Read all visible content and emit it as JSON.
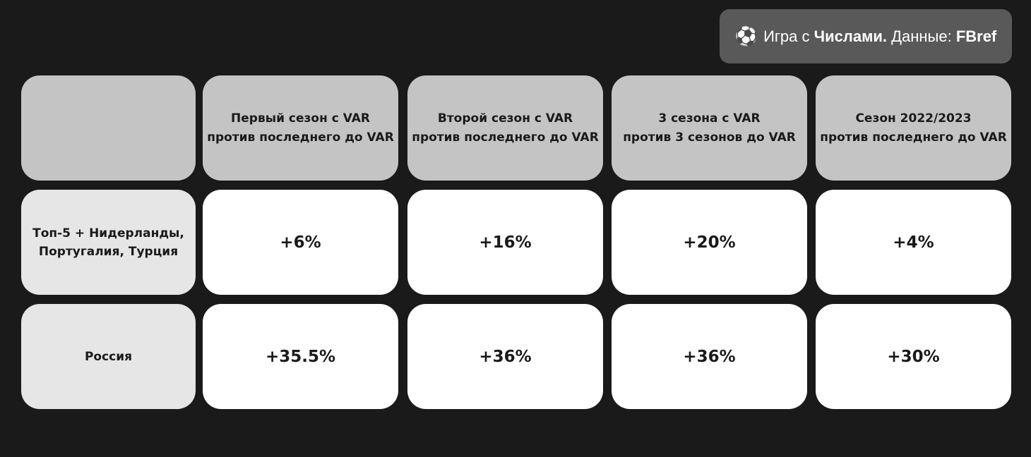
{
  "badge": {
    "icon": "soccer-ball-icon",
    "brand_a": "Игра с ",
    "brand_b": "Числами.",
    "data_label": " Данные: ",
    "source": "FBref"
  },
  "columns": [
    "",
    "Первый сезон с VAR\nпротив последнего до VAR",
    "Второй сезон с VAR\nпротив последнего до VAR",
    "3 сезона с VAR\nпротив 3 сезонов до VAR",
    "Сезон 2022/2023\nпротив последнего до VAR"
  ],
  "rows": [
    {
      "label": "Топ-5 + Нидерланды,\nПортугалия, Турция",
      "values": [
        "+6%",
        "+16%",
        "+20%",
        "+4%"
      ]
    },
    {
      "label": "Россия",
      "values": [
        "+35.5%",
        "+36%",
        "+36%",
        "+30%"
      ]
    }
  ],
  "colors": {
    "background": "#1a1a1a",
    "header": "#c4c4c4",
    "row_label": "#e6e6e6",
    "value": "#ffffff",
    "badge": "#595959"
  }
}
